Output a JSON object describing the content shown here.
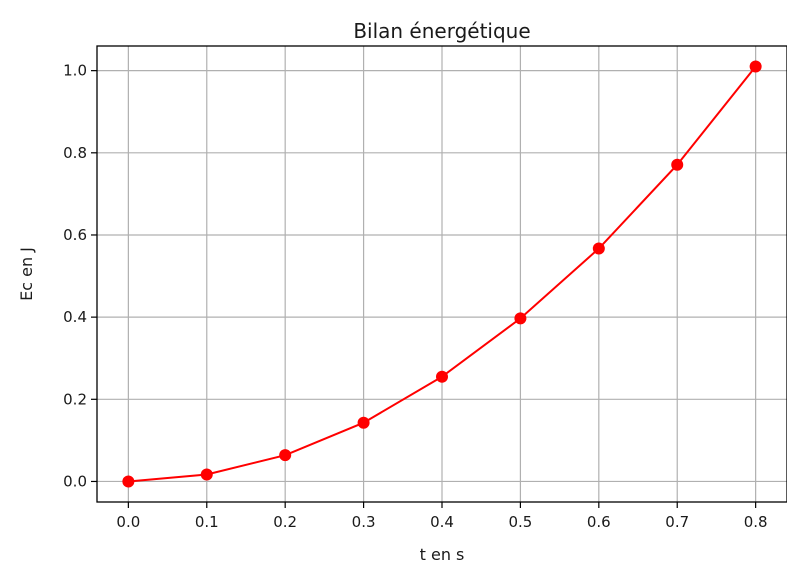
{
  "chart_data": {
    "type": "line",
    "title": "Bilan énergétique",
    "xlabel": "t en s",
    "ylabel": "Ec en J",
    "xlim": [
      -0.04,
      0.84
    ],
    "ylim": [
      -0.05,
      1.06
    ],
    "grid": true,
    "x_ticks": [
      "0.0",
      "0.1",
      "0.2",
      "0.3",
      "0.4",
      "0.5",
      "0.6",
      "0.7",
      "0.8"
    ],
    "y_ticks": [
      "0.0",
      "0.2",
      "0.4",
      "0.6",
      "0.8",
      "1.0"
    ],
    "x_tick_values": [
      0,
      0.1,
      0.2,
      0.3,
      0.4,
      0.5,
      0.6,
      0.7,
      0.8
    ],
    "y_tick_values": [
      0,
      0.2,
      0.4,
      0.6,
      0.8,
      1.0
    ],
    "series": [
      {
        "color": "#ff0000",
        "marker": "circle",
        "x": [
          0.0,
          0.1,
          0.2,
          0.3,
          0.4,
          0.5,
          0.6,
          0.7,
          0.8
        ],
        "y": [
          0.0,
          0.017,
          0.064,
          0.143,
          0.255,
          0.397,
          0.567,
          0.771,
          1.01
        ]
      }
    ]
  }
}
